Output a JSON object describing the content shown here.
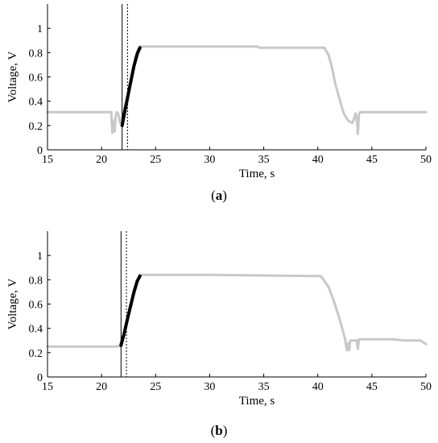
{
  "chart_data": [
    {
      "type": "line",
      "caption_letter": "a",
      "xlabel": "Time, s",
      "ylabel": "Voltage, V",
      "xlim": [
        15,
        50
      ],
      "ylim": [
        0,
        1.2
      ],
      "xticks": [
        "15",
        "20",
        "25",
        "30",
        "35",
        "40",
        "45",
        "50"
      ],
      "yticks": [
        "0",
        "0.2",
        "0.4",
        "0.6",
        "0.8",
        "1"
      ],
      "grid": false,
      "legend": "none",
      "vlines": [
        {
          "x": 21.9,
          "style": "solid"
        },
        {
          "x": 22.4,
          "style": "dotted"
        }
      ],
      "series": [
        {
          "color": "#c8c8c8",
          "x": [
            15,
            20.9,
            20.95,
            21.0,
            21.1,
            21.2,
            21.3,
            21.4,
            21.5,
            21.6,
            21.7,
            21.8,
            21.9,
            22.2,
            22.5,
            22.8,
            23.1,
            23.3,
            23.5,
            24,
            30,
            34.4,
            34.6,
            35,
            40.6,
            41.0,
            41.3,
            41.6,
            42.0,
            42.4,
            42.8,
            43.2,
            43.5,
            43.65,
            43.7,
            43.75,
            43.8,
            43.9,
            44.0,
            44.5,
            50
          ],
          "y": [
            0.31,
            0.31,
            0.22,
            0.14,
            0.24,
            0.15,
            0.27,
            0.31,
            0.3,
            0.28,
            0.22,
            0.26,
            0.2,
            0.28,
            0.45,
            0.6,
            0.75,
            0.81,
            0.85,
            0.85,
            0.85,
            0.85,
            0.84,
            0.84,
            0.84,
            0.78,
            0.68,
            0.55,
            0.42,
            0.3,
            0.24,
            0.22,
            0.3,
            0.21,
            0.13,
            0.2,
            0.29,
            0.31,
            0.31,
            0.31,
            0.31
          ]
        },
        {
          "color": "#000000",
          "x": [
            21.9,
            22.1,
            22.4,
            22.7,
            23.0,
            23.3,
            23.55
          ],
          "y": [
            0.2,
            0.3,
            0.43,
            0.56,
            0.69,
            0.79,
            0.84
          ]
        }
      ]
    },
    {
      "type": "line",
      "caption_letter": "b",
      "xlabel": "Time, s",
      "ylabel": "Voltage, V",
      "xlim": [
        15,
        50
      ],
      "ylim": [
        0,
        1.2
      ],
      "xticks": [
        "15",
        "20",
        "25",
        "30",
        "35",
        "40",
        "45",
        "50"
      ],
      "yticks": [
        "0",
        "0.2",
        "0.4",
        "0.6",
        "0.8",
        "1"
      ],
      "grid": false,
      "legend": "none",
      "vlines": [
        {
          "x": 21.8,
          "style": "solid"
        },
        {
          "x": 22.3,
          "style": "dotted"
        }
      ],
      "series": [
        {
          "color": "#c8c8c8",
          "x": [
            15,
            21.5,
            21.7,
            22.2,
            23.0,
            23.5,
            30,
            40.3,
            41.0,
            41.5,
            42.0,
            42.5,
            42.6,
            42.7,
            42.8,
            42.9,
            43.0,
            43.3,
            43.6,
            43.7,
            43.75,
            43.8,
            43.9,
            44.5,
            47,
            48,
            49.5,
            50
          ],
          "y": [
            0.25,
            0.25,
            0.26,
            0.4,
            0.68,
            0.84,
            0.84,
            0.83,
            0.74,
            0.62,
            0.48,
            0.32,
            0.26,
            0.22,
            0.28,
            0.22,
            0.3,
            0.3,
            0.3,
            0.23,
            0.27,
            0.31,
            0.31,
            0.31,
            0.31,
            0.3,
            0.3,
            0.27
          ]
        },
        {
          "color": "#000000",
          "x": [
            21.8,
            22.1,
            22.4,
            22.7,
            23.0,
            23.3,
            23.55
          ],
          "y": [
            0.26,
            0.36,
            0.48,
            0.59,
            0.7,
            0.79,
            0.83
          ]
        }
      ]
    }
  ]
}
